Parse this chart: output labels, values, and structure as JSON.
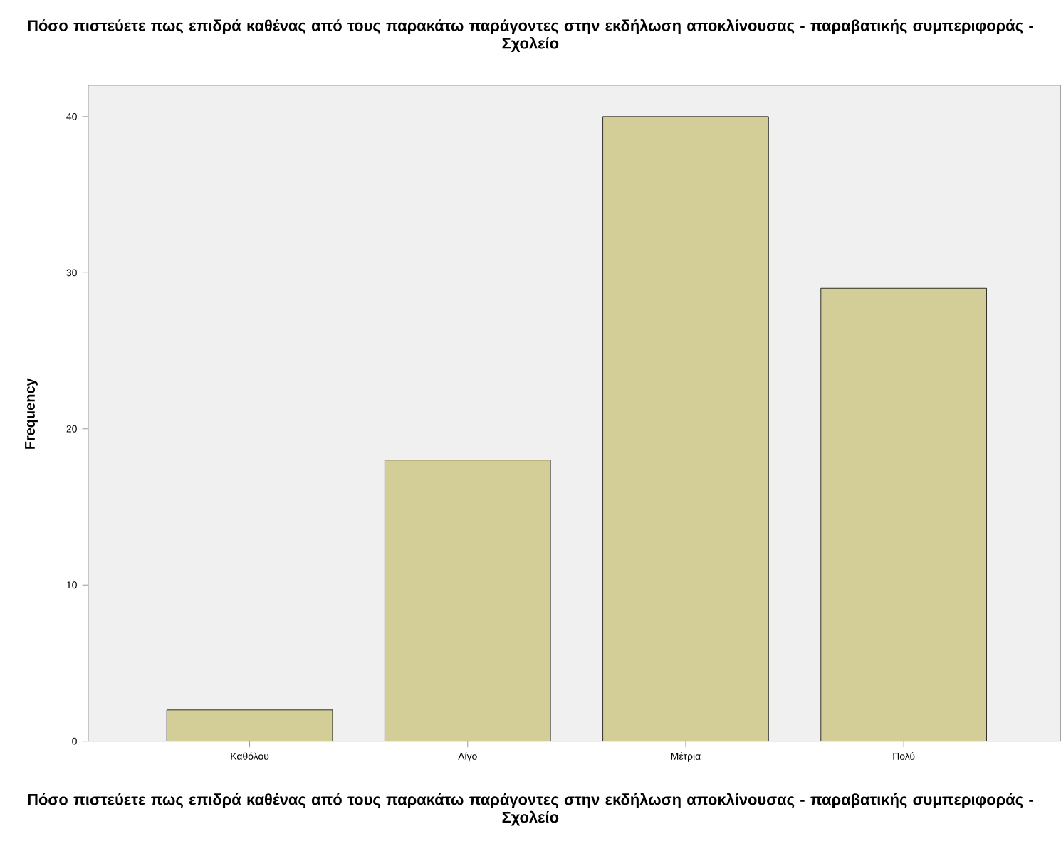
{
  "chart_data": {
    "type": "bar",
    "title": "Πόσο πιστεύετε πως επιδρά καθένας από τους παρακάτω παράγοντες στην εκδήλωση αποκλίνουσας - παραβατικής συμπεριφοράς - Σχολείο",
    "xlabel": "Πόσο πιστεύετε πως επιδρά καθένας από τους παρακάτω παράγοντες στην εκδήλωση αποκλίνουσας - παραβατικής συμπεριφοράς - Σχολείο",
    "ylabel": "Frequency",
    "categories": [
      "Καθόλου",
      "Λίγο",
      "Μέτρια",
      "Πολύ"
    ],
    "values": [
      2,
      18,
      40,
      29
    ],
    "color": "#d3ce97",
    "ylim": [
      0,
      42
    ],
    "yticks": [
      0,
      10,
      20,
      30,
      40
    ]
  }
}
